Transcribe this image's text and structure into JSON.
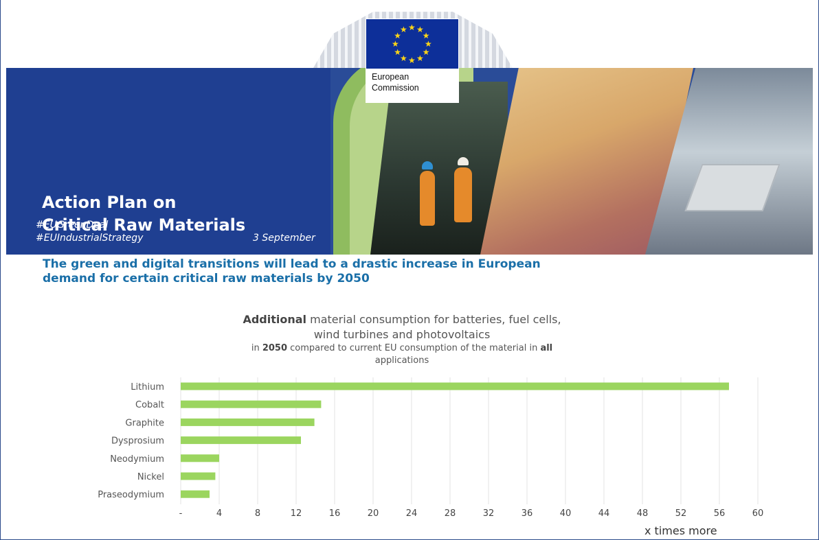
{
  "banner": {
    "title_line1": "Action Plan on",
    "title_line2": "Critical Raw Materials",
    "hashtag1": "#EUGreenDeal",
    "hashtag2": "#EUIndustrialStrategy",
    "date": "3 September",
    "logo_line1": "European",
    "logo_line2": "Commission",
    "colors": {
      "banner_blue": "#1f3f91",
      "flag_blue": "#0d2f99",
      "star_yellow": "#ffd617",
      "green": "#8fbc5f"
    }
  },
  "headline": {
    "line1": "The green and digital transitions will lead to a drastic increase in European",
    "line2": "demand for certain critical raw materials by 2050"
  },
  "chart_title": {
    "l1_bold": "Additional",
    "l1_rest": " material consumption for batteries, fuel cells,",
    "l2": "wind turbines and photovoltaics",
    "l3_pre": "in ",
    "l3_bold1": "2050",
    "l3_mid": " compared to current EU consumption of the material in ",
    "l3_bold2": "all",
    "l4": "applications"
  },
  "chart_data": {
    "type": "bar",
    "orientation": "horizontal",
    "categories": [
      "Lithium",
      "Cobalt",
      "Graphite",
      "Dysprosium",
      "Neodymium",
      "Nickel",
      "Praseodymium"
    ],
    "values": [
      57,
      14.6,
      13.9,
      12.5,
      4,
      3.6,
      3
    ],
    "xlim": [
      0,
      60
    ],
    "xticks": [
      "-",
      "4",
      "8",
      "12",
      "16",
      "20",
      "24",
      "28",
      "32",
      "36",
      "40",
      "44",
      "48",
      "52",
      "56",
      "60"
    ],
    "xlabel": "x times more",
    "grid": "vertical",
    "bar_color": "#9bd55f"
  }
}
